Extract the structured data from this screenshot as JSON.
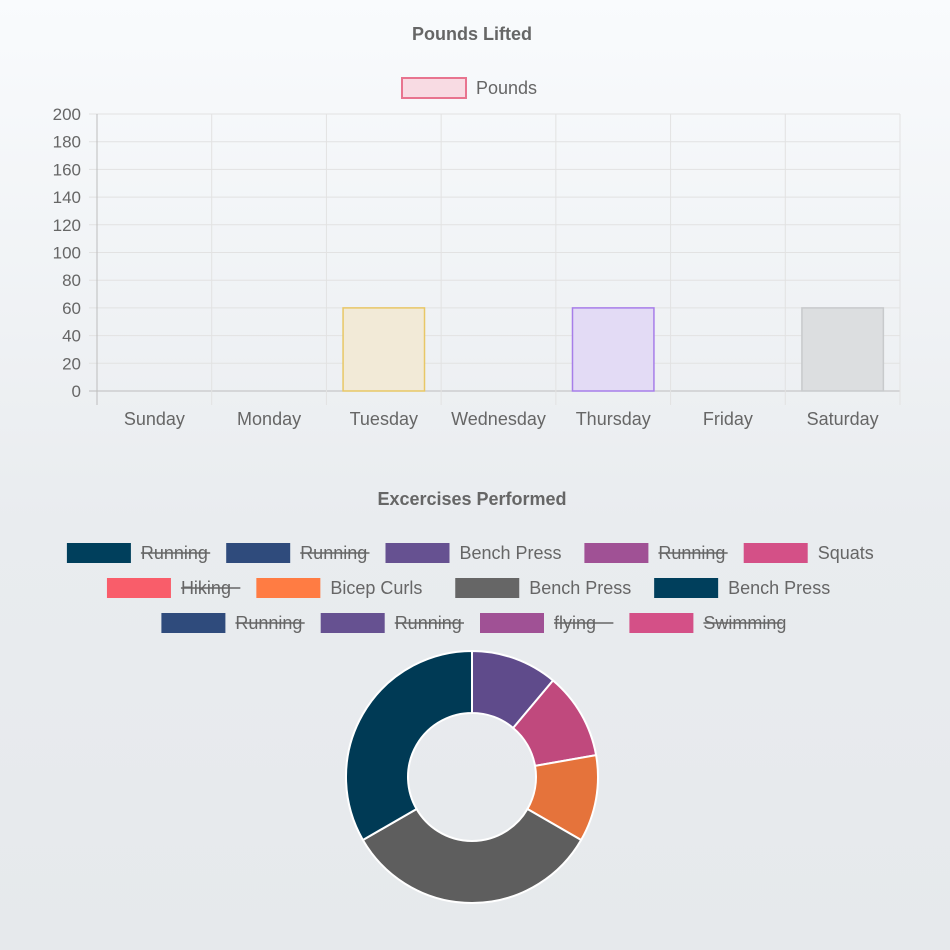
{
  "chart_data": [
    {
      "type": "bar",
      "title": "Pounds Lifted",
      "categories": [
        "Sunday",
        "Monday",
        "Tuesday",
        "Wednesday",
        "Thursday",
        "Friday",
        "Saturday"
      ],
      "series": [
        {
          "name": "Pounds",
          "values": [
            0,
            0,
            60,
            0,
            60,
            0,
            60
          ]
        }
      ],
      "ylim": [
        0,
        200
      ],
      "yticks": [
        0,
        20,
        40,
        60,
        80,
        100,
        120,
        140,
        160,
        180,
        200
      ],
      "grid": true,
      "legend_position": "top",
      "legend_color": {
        "fill": "#f8dbe3",
        "stroke": "#e8748f"
      },
      "bar_colors": [
        {
          "fill": "#f7e0e6",
          "stroke": "#e8748f"
        },
        {
          "fill": "#dbe6f5",
          "stroke": "#6c93d1"
        },
        {
          "fill": "#f2ead7",
          "stroke": "#e8c766"
        },
        {
          "fill": "#d9efee",
          "stroke": "#6cc2bf"
        },
        {
          "fill": "#e3dbf5",
          "stroke": "#a77ee9"
        },
        {
          "fill": "#f7e6d6",
          "stroke": "#f0a35e"
        },
        {
          "fill": "#dcdee0",
          "stroke": "#c8cacc"
        }
      ]
    },
    {
      "type": "pie",
      "variant": "doughnut",
      "title": "Excercises Performed",
      "legend_position": "top",
      "legend": [
        {
          "label": "Running",
          "color": "#003f5c",
          "hidden": true
        },
        {
          "label": "Running",
          "color": "#2f4b7c",
          "hidden": true
        },
        {
          "label": "Bench Press",
          "color": "#665191",
          "hidden": false
        },
        {
          "label": "Running",
          "color": "#a05195",
          "hidden": true
        },
        {
          "label": "Squats",
          "color": "#d45087",
          "hidden": false
        },
        {
          "label": "Hiking",
          "color": "#f95d6a",
          "hidden": true
        },
        {
          "label": "Bicep Curls",
          "color": "#ff7c43",
          "hidden": false
        },
        {
          "label": "Bench Press",
          "color": "#666666",
          "hidden": false
        },
        {
          "label": "Bench Press",
          "color": "#003f5c",
          "hidden": false
        },
        {
          "label": "Running",
          "color": "#2f4b7c",
          "hidden": true
        },
        {
          "label": "Running",
          "color": "#665191",
          "hidden": true
        },
        {
          "label": "flying",
          "color": "#a05195",
          "hidden": true
        },
        {
          "label": "Swimming",
          "color": "#d45087",
          "hidden": true
        }
      ],
      "legend_rows": [
        [
          0,
          1,
          2,
          3,
          4
        ],
        [
          5,
          6,
          7,
          8
        ],
        [
          9,
          10,
          11,
          12
        ]
      ],
      "values": [
        0,
        0,
        1,
        0,
        1,
        0,
        1,
        3,
        3,
        0,
        0,
        0,
        0
      ],
      "slice_colors": [
        "#003f5c",
        "#2f4b7c",
        "#5f4b8b",
        "#a05195",
        "#c0497d",
        "#f95d6a",
        "#e5733b",
        "#5e5e5e",
        "#003a55",
        "#2f4b7c",
        "#665191",
        "#a05195",
        "#d45087"
      ]
    }
  ]
}
